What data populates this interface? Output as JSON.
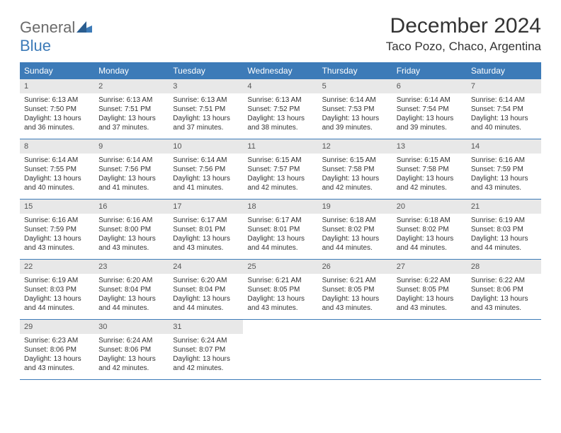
{
  "brand": {
    "part1": "General",
    "part2": "Blue"
  },
  "title": "December 2024",
  "location": "Taco Pozo, Chaco, Argentina",
  "colors": {
    "header_bg": "#3d7bb8",
    "header_text": "#ffffff",
    "daynum_bg": "#e8e8e8",
    "body_text": "#333333",
    "rule": "#3d7bb8"
  },
  "day_names": [
    "Sunday",
    "Monday",
    "Tuesday",
    "Wednesday",
    "Thursday",
    "Friday",
    "Saturday"
  ],
  "weeks": [
    [
      {
        "n": "1",
        "sr": "6:13 AM",
        "ss": "7:50 PM",
        "dl": "13 hours and 36 minutes."
      },
      {
        "n": "2",
        "sr": "6:13 AM",
        "ss": "7:51 PM",
        "dl": "13 hours and 37 minutes."
      },
      {
        "n": "3",
        "sr": "6:13 AM",
        "ss": "7:51 PM",
        "dl": "13 hours and 37 minutes."
      },
      {
        "n": "4",
        "sr": "6:13 AM",
        "ss": "7:52 PM",
        "dl": "13 hours and 38 minutes."
      },
      {
        "n": "5",
        "sr": "6:14 AM",
        "ss": "7:53 PM",
        "dl": "13 hours and 39 minutes."
      },
      {
        "n": "6",
        "sr": "6:14 AM",
        "ss": "7:54 PM",
        "dl": "13 hours and 39 minutes."
      },
      {
        "n": "7",
        "sr": "6:14 AM",
        "ss": "7:54 PM",
        "dl": "13 hours and 40 minutes."
      }
    ],
    [
      {
        "n": "8",
        "sr": "6:14 AM",
        "ss": "7:55 PM",
        "dl": "13 hours and 40 minutes."
      },
      {
        "n": "9",
        "sr": "6:14 AM",
        "ss": "7:56 PM",
        "dl": "13 hours and 41 minutes."
      },
      {
        "n": "10",
        "sr": "6:14 AM",
        "ss": "7:56 PM",
        "dl": "13 hours and 41 minutes."
      },
      {
        "n": "11",
        "sr": "6:15 AM",
        "ss": "7:57 PM",
        "dl": "13 hours and 42 minutes."
      },
      {
        "n": "12",
        "sr": "6:15 AM",
        "ss": "7:58 PM",
        "dl": "13 hours and 42 minutes."
      },
      {
        "n": "13",
        "sr": "6:15 AM",
        "ss": "7:58 PM",
        "dl": "13 hours and 42 minutes."
      },
      {
        "n": "14",
        "sr": "6:16 AM",
        "ss": "7:59 PM",
        "dl": "13 hours and 43 minutes."
      }
    ],
    [
      {
        "n": "15",
        "sr": "6:16 AM",
        "ss": "7:59 PM",
        "dl": "13 hours and 43 minutes."
      },
      {
        "n": "16",
        "sr": "6:16 AM",
        "ss": "8:00 PM",
        "dl": "13 hours and 43 minutes."
      },
      {
        "n": "17",
        "sr": "6:17 AM",
        "ss": "8:01 PM",
        "dl": "13 hours and 43 minutes."
      },
      {
        "n": "18",
        "sr": "6:17 AM",
        "ss": "8:01 PM",
        "dl": "13 hours and 44 minutes."
      },
      {
        "n": "19",
        "sr": "6:18 AM",
        "ss": "8:02 PM",
        "dl": "13 hours and 44 minutes."
      },
      {
        "n": "20",
        "sr": "6:18 AM",
        "ss": "8:02 PM",
        "dl": "13 hours and 44 minutes."
      },
      {
        "n": "21",
        "sr": "6:19 AM",
        "ss": "8:03 PM",
        "dl": "13 hours and 44 minutes."
      }
    ],
    [
      {
        "n": "22",
        "sr": "6:19 AM",
        "ss": "8:03 PM",
        "dl": "13 hours and 44 minutes."
      },
      {
        "n": "23",
        "sr": "6:20 AM",
        "ss": "8:04 PM",
        "dl": "13 hours and 44 minutes."
      },
      {
        "n": "24",
        "sr": "6:20 AM",
        "ss": "8:04 PM",
        "dl": "13 hours and 44 minutes."
      },
      {
        "n": "25",
        "sr": "6:21 AM",
        "ss": "8:05 PM",
        "dl": "13 hours and 43 minutes."
      },
      {
        "n": "26",
        "sr": "6:21 AM",
        "ss": "8:05 PM",
        "dl": "13 hours and 43 minutes."
      },
      {
        "n": "27",
        "sr": "6:22 AM",
        "ss": "8:05 PM",
        "dl": "13 hours and 43 minutes."
      },
      {
        "n": "28",
        "sr": "6:22 AM",
        "ss": "8:06 PM",
        "dl": "13 hours and 43 minutes."
      }
    ],
    [
      {
        "n": "29",
        "sr": "6:23 AM",
        "ss": "8:06 PM",
        "dl": "13 hours and 43 minutes."
      },
      {
        "n": "30",
        "sr": "6:24 AM",
        "ss": "8:06 PM",
        "dl": "13 hours and 42 minutes."
      },
      {
        "n": "31",
        "sr": "6:24 AM",
        "ss": "8:07 PM",
        "dl": "13 hours and 42 minutes."
      },
      null,
      null,
      null,
      null
    ]
  ],
  "labels": {
    "sunrise": "Sunrise:",
    "sunset": "Sunset:",
    "daylight": "Daylight:"
  }
}
